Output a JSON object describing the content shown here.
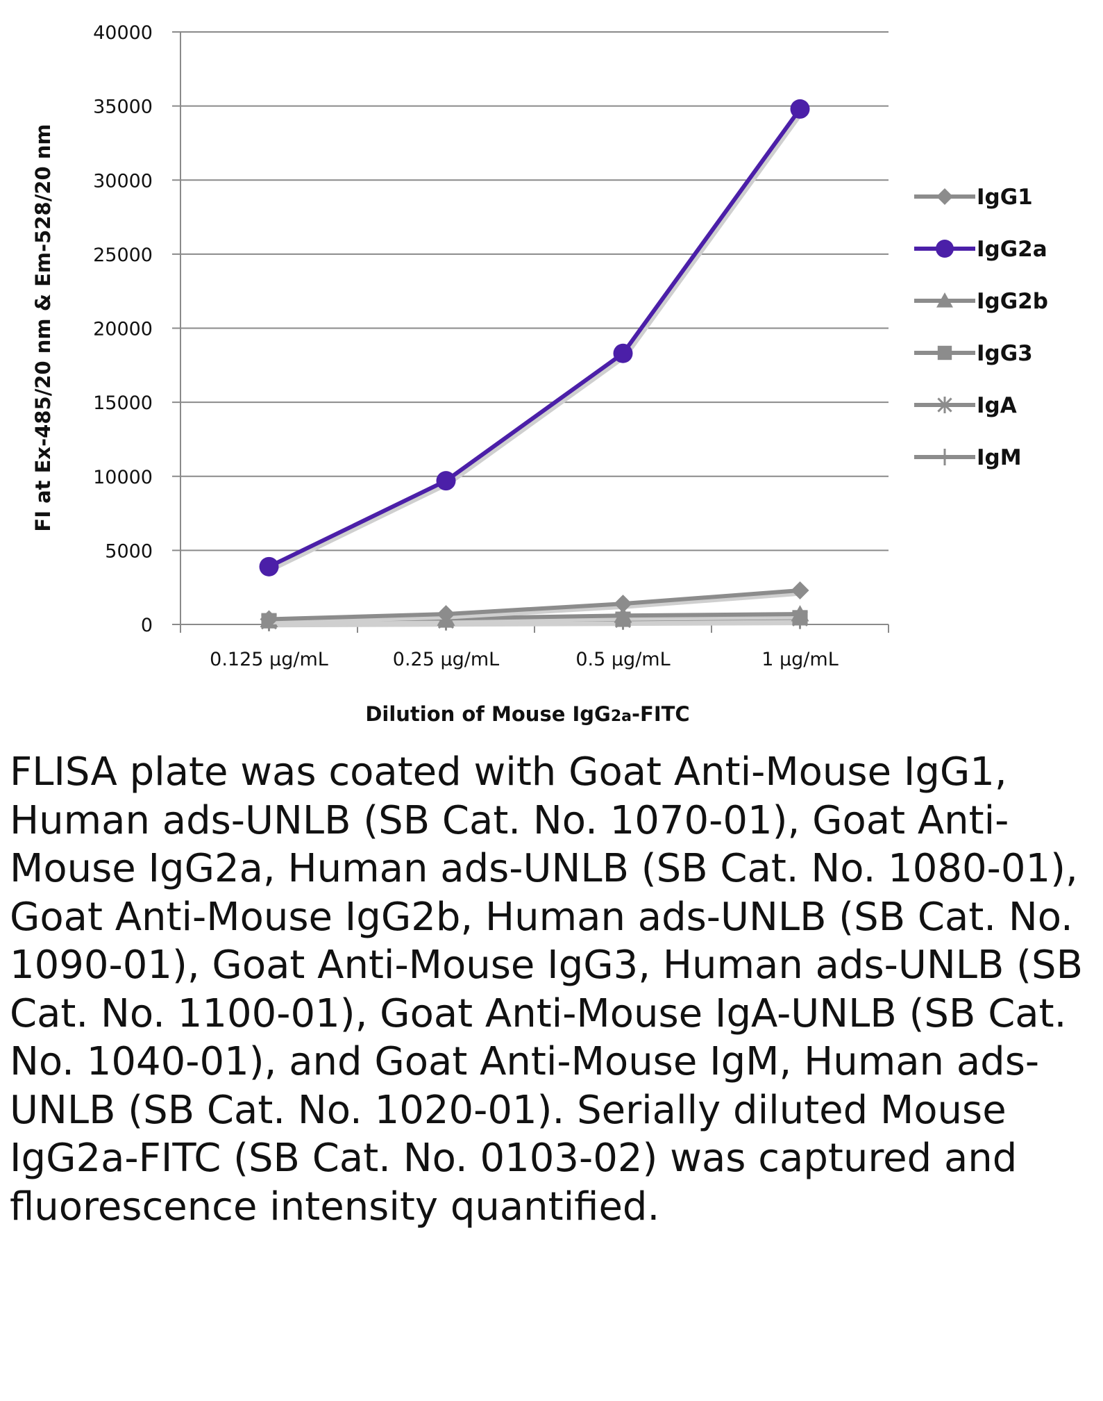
{
  "chart_data": {
    "type": "line",
    "categories": [
      "0.125 µg/mL",
      "0.25 µg/mL",
      "0.5 µg/mL",
      "1 µg/mL"
    ],
    "series": [
      {
        "name": "IgG1",
        "marker": "diamond",
        "color": "#8c8c8c",
        "values": [
          350,
          700,
          1400,
          2300
        ]
      },
      {
        "name": "IgG2a",
        "marker": "circle",
        "color": "#4b1fa8",
        "values": [
          3900,
          9700,
          18300,
          34800
        ]
      },
      {
        "name": "IgG2b",
        "marker": "triangle",
        "color": "#8c8c8c",
        "values": [
          300,
          400,
          600,
          700
        ]
      },
      {
        "name": "IgG3",
        "marker": "square",
        "color": "#8c8c8c",
        "values": [
          250,
          300,
          350,
          450
        ]
      },
      {
        "name": "IgA",
        "marker": "asterisk",
        "color": "#8c8c8c",
        "values": [
          200,
          250,
          300,
          400
        ]
      },
      {
        "name": "IgM",
        "marker": "plus",
        "color": "#8c8c8c",
        "values": [
          150,
          200,
          250,
          300
        ]
      }
    ],
    "yticks": [
      0,
      5000,
      10000,
      15000,
      20000,
      25000,
      30000,
      35000,
      40000
    ],
    "ylim": [
      0,
      40000
    ],
    "xlabel": "Dilution of Mouse IgG2a-FITC",
    "ylabel": "FI at Ex-485/20 nm & Em-528/20 nm",
    "grid": "horizontal",
    "legend_position": "right"
  },
  "xlabel_parts": {
    "pre": "Dilution of Mouse IgG",
    "sub": "2a",
    "post": "-FITC"
  },
  "caption": "FLISA plate was coated with Goat Anti-Mouse IgG1, Human ads-UNLB (SB Cat. No. 1070-01), Goat Anti-Mouse IgG2a, Human ads-UNLB (SB Cat. No. 1080-01), Goat Anti-Mouse IgG2b, Human ads-UNLB (SB Cat. No. 1090-01), Goat Anti-Mouse IgG3, Human ads-UNLB (SB Cat. No. 1100-01), Goat Anti-Mouse IgA-UNLB (SB Cat. No. 1040-01), and Goat Anti-Mouse IgM, Human ads-UNLB (SB Cat. No. 1020-01).  Serially diluted Mouse IgG2a-FITC (SB Cat. No. 0103-02) was captured and fluorescence intensity quantified."
}
